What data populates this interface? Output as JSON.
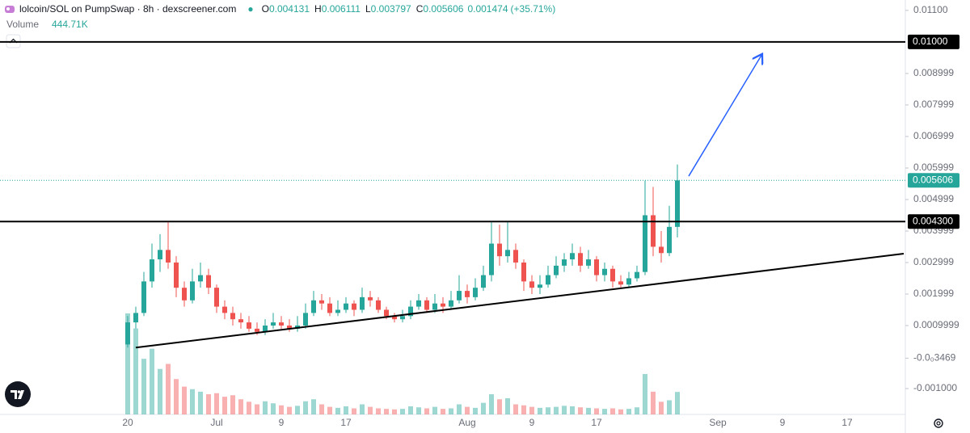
{
  "chart_data": {
    "type": "candlestick",
    "title": "lolcoin/SOL on PumpSwap · 8h · dexscreener.com",
    "ohlc_labels": [
      "O",
      "H",
      "L",
      "C"
    ],
    "change": 0.001474,
    "change_label": "(+35.71%)",
    "volume_title": "Volume",
    "volume_last_label": "444.71K",
    "up_color": "#26a69a",
    "down_color": "#ef5350",
    "open": [
      0.0004,
      0.0011,
      0.0014,
      0.0024,
      0.0031,
      0.0034,
      0.003,
      0.0022,
      0.0018,
      0.0024,
      0.0026,
      0.0022,
      0.0016,
      0.0014,
      0.0012,
      0.0011,
      0.0009,
      0.0008,
      0.001,
      0.0011,
      0.001,
      0.0009,
      0.001,
      0.0014,
      0.0018,
      0.0017,
      0.0014,
      0.0015,
      0.0017,
      0.0015,
      0.0019,
      0.0018,
      0.0015,
      0.0013,
      0.0012,
      0.0013,
      0.0016,
      0.0018,
      0.0015,
      0.0017,
      0.0016,
      0.0018,
      0.0021,
      0.0019,
      0.0022,
      0.0026,
      0.0036,
      0.0032,
      0.0034,
      0.003,
      0.0024,
      0.0022,
      0.0023,
      0.0026,
      0.0029,
      0.0031,
      0.0033,
      0.0029,
      0.0031,
      0.0026,
      0.0028,
      0.0024,
      0.0023,
      0.0025,
      0.0027,
      0.0045,
      0.0035,
      0.0033,
      0.004131
    ],
    "high": [
      0.0013,
      0.0016,
      0.0027,
      0.0036,
      0.0039,
      0.0043,
      0.0032,
      0.0024,
      0.0028,
      0.003,
      0.0028,
      0.0023,
      0.0018,
      0.0016,
      0.0014,
      0.0013,
      0.0011,
      0.0012,
      0.0014,
      0.0013,
      0.0012,
      0.0013,
      0.0017,
      0.0021,
      0.002,
      0.0019,
      0.0018,
      0.0019,
      0.0018,
      0.0022,
      0.0021,
      0.0019,
      0.0016,
      0.0014,
      0.0015,
      0.0018,
      0.002,
      0.0019,
      0.002,
      0.0019,
      0.0021,
      0.0026,
      0.0023,
      0.0025,
      0.0029,
      0.0043,
      0.0042,
      0.0043,
      0.0036,
      0.0031,
      0.0026,
      0.0026,
      0.0029,
      0.0032,
      0.0033,
      0.0036,
      0.0035,
      0.0034,
      0.0032,
      0.003,
      0.0029,
      0.0026,
      0.0027,
      0.0029,
      0.0056,
      0.0054,
      0.004,
      0.0048,
      0.006111
    ],
    "low": [
      0.0003,
      0.0009,
      0.0013,
      0.0022,
      0.0027,
      0.0028,
      0.0019,
      0.0016,
      0.0017,
      0.0022,
      0.002,
      0.0014,
      0.0012,
      0.001,
      0.0009,
      0.0008,
      0.0007,
      0.0007,
      0.0009,
      0.0009,
      0.0008,
      0.0008,
      0.0009,
      0.0013,
      0.0015,
      0.0013,
      0.0013,
      0.0014,
      0.0013,
      0.0014,
      0.0016,
      0.0014,
      0.0012,
      0.0011,
      0.0011,
      0.0012,
      0.0015,
      0.0014,
      0.0014,
      0.0014,
      0.0015,
      0.0017,
      0.0017,
      0.0018,
      0.0021,
      0.0024,
      0.0029,
      0.003,
      0.0028,
      0.0021,
      0.002,
      0.002,
      0.0022,
      0.0025,
      0.0027,
      0.0029,
      0.0027,
      0.0028,
      0.0024,
      0.0024,
      0.0022,
      0.0022,
      0.0022,
      0.0024,
      0.0026,
      0.0032,
      0.003,
      0.0032,
      0.003797
    ],
    "close": [
      0.0011,
      0.0014,
      0.0024,
      0.0031,
      0.0034,
      0.003,
      0.0022,
      0.0018,
      0.0024,
      0.0026,
      0.0022,
      0.0016,
      0.0014,
      0.0012,
      0.0011,
      0.0009,
      0.0008,
      0.001,
      0.0011,
      0.001,
      0.0009,
      0.001,
      0.0014,
      0.0018,
      0.0017,
      0.0014,
      0.0015,
      0.0017,
      0.0015,
      0.0019,
      0.0018,
      0.0015,
      0.0013,
      0.0012,
      0.0013,
      0.0016,
      0.0018,
      0.0015,
      0.0017,
      0.0016,
      0.0018,
      0.0021,
      0.0019,
      0.0022,
      0.0026,
      0.0036,
      0.0032,
      0.0034,
      0.003,
      0.0024,
      0.0022,
      0.0023,
      0.0026,
      0.0029,
      0.0031,
      0.0033,
      0.0029,
      0.0031,
      0.0026,
      0.0028,
      0.0024,
      0.0023,
      0.0025,
      0.0027,
      0.0045,
      0.0035,
      0.0033,
      0.004131,
      0.005606
    ],
    "volume": [
      2000000,
      1700000,
      1100000,
      1300000,
      900000,
      1000000,
      700000,
      550000,
      500000,
      450000,
      400000,
      420000,
      350000,
      380000,
      300000,
      250000,
      200000,
      260000,
      220000,
      180000,
      150000,
      170000,
      260000,
      300000,
      200000,
      150000,
      130000,
      160000,
      120000,
      200000,
      150000,
      120000,
      110000,
      100000,
      110000,
      160000,
      140000,
      120000,
      150000,
      110000,
      120000,
      200000,
      150000,
      130000,
      230000,
      400000,
      300000,
      320000,
      200000,
      180000,
      150000,
      130000,
      140000,
      150000,
      170000,
      160000,
      140000,
      130000,
      120000,
      110000,
      120000,
      100000,
      110000,
      140000,
      800000,
      450000,
      250000,
      280000,
      444710
    ],
    "volume_lim": [
      0,
      8200000
    ],
    "xlim": [
      -15.8,
      96.2
    ],
    "xticks": [
      {
        "value": 0,
        "label": "20"
      },
      {
        "value": 11,
        "label": "Jul"
      },
      {
        "value": 19,
        "label": "9"
      },
      {
        "value": 27,
        "label": "17"
      },
      {
        "value": 42,
        "label": "Aug"
      },
      {
        "value": 50,
        "label": "9"
      },
      {
        "value": 58,
        "label": "17"
      },
      {
        "value": 73,
        "label": "Sep"
      },
      {
        "value": 81,
        "label": "9"
      },
      {
        "value": 89,
        "label": "17"
      }
    ],
    "ylim": [
      -0.00182,
      0.01133
    ],
    "yticks": [
      {
        "value": 0.011,
        "label": "0.01100"
      },
      0.008999,
      0.007999,
      0.006999,
      0.005999,
      0.004999,
      0.003999,
      0.002999,
      0.001999,
      0.0009999,
      {
        "value": -3.469e-05,
        "label": "-0.0₀3469"
      },
      {
        "value": -0.001,
        "label": "-0.001000"
      }
    ],
    "levels": [
      {
        "value": 0.01,
        "label": "0.01000"
      },
      {
        "value": 0.0043,
        "label": "0.004300"
      }
    ],
    "trendline": [
      [
        1,
        0.0003
      ],
      [
        96,
        0.00328
      ]
    ],
    "arrow": {
      "from": [
        69.4,
        0.00574
      ],
      "to": [
        78.5,
        0.00962
      ]
    }
  }
}
